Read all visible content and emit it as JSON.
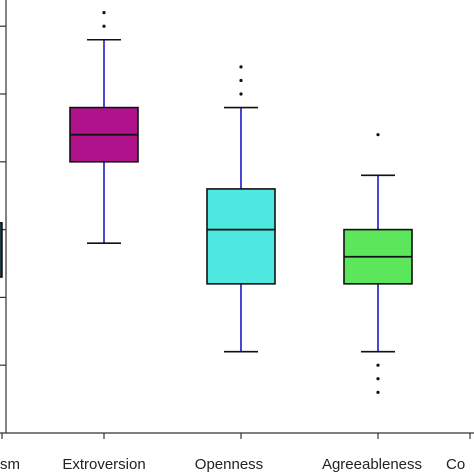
{
  "chart_data": {
    "type": "box",
    "title": "",
    "xlabel": "",
    "ylabel": "",
    "ylim": [
      0,
      6.2
    ],
    "yticks": [
      1,
      2,
      3,
      4,
      5,
      6
    ],
    "ytick_labels_visible": false,
    "grid": false,
    "categories": [
      "sm",
      "Extroversion",
      "Openness",
      "Agreeableness",
      "Co"
    ],
    "boxes": [
      {
        "category": "sm",
        "partially_visible": true,
        "color": "#1f3a4a",
        "whisker_color": "#1f3a4a",
        "q1": 2.3,
        "median": null,
        "q3": 3.1,
        "whisker_low": null,
        "whisker_high": null,
        "outliers": []
      },
      {
        "category": "Extroversion",
        "color": "#b0128b",
        "whisker_color": "#1a1acc",
        "q1": 4.0,
        "median": 4.4,
        "q3": 4.8,
        "whisker_low": 2.8,
        "whisker_high": 5.8,
        "outliers": [
          6.2,
          6.0
        ]
      },
      {
        "category": "Openness",
        "color": "#4fe8e0",
        "whisker_color": "#1a1acc",
        "q1": 2.2,
        "median": 3.0,
        "q3": 3.6,
        "whisker_low": 1.2,
        "whisker_high": 4.8,
        "outliers": [
          5.0,
          5.2,
          5.4
        ]
      },
      {
        "category": "Agreeableness",
        "color": "#5ce65c",
        "whisker_color": "#1a1acc",
        "q1": 2.2,
        "median": 2.6,
        "q3": 3.0,
        "whisker_low": 1.2,
        "whisker_high": 3.8,
        "outliers": [
          4.4,
          1.0,
          0.8,
          0.6
        ]
      }
    ]
  }
}
